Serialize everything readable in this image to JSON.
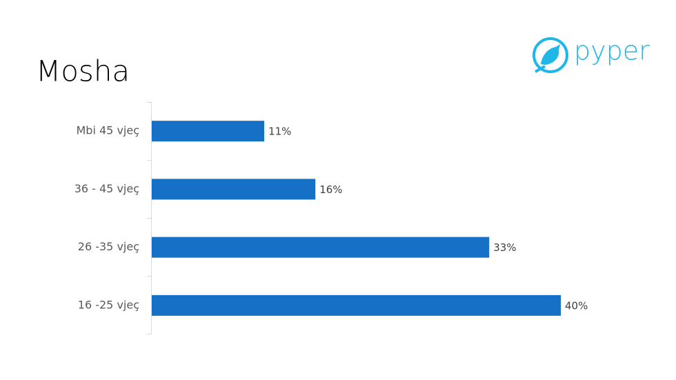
{
  "brand": "pyper",
  "chart_data": {
    "type": "bar",
    "orientation": "horizontal",
    "title": "Mosha",
    "categories": [
      "Mbi 45 vjeç",
      "36 - 45 vjeç",
      "26 -35 vjeç",
      "16 -25 vjeç"
    ],
    "values": [
      11,
      16,
      33,
      40
    ],
    "value_labels": [
      "11%",
      "16%",
      "33%",
      "40%"
    ],
    "color": "#1570c6"
  }
}
